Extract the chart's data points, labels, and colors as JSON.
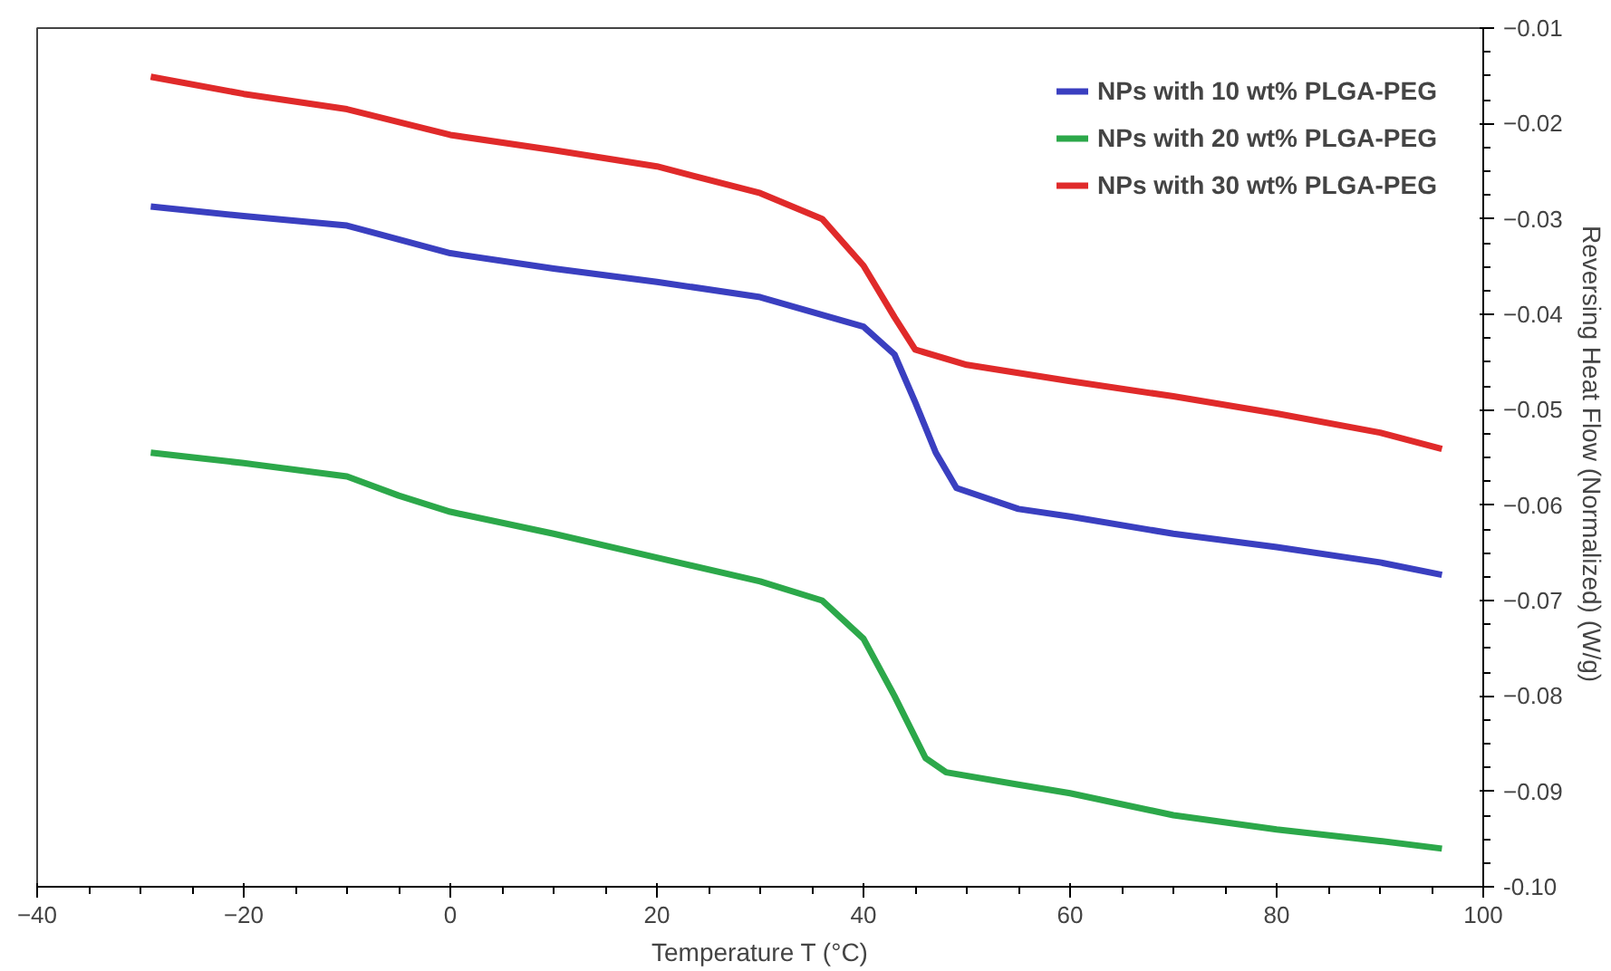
{
  "chart_data": {
    "type": "line",
    "xlabel": "Temperature T (°C)",
    "ylabel": "Reversing Heat Flow (Normalized)  (W/g)",
    "xlim": [
      -40,
      100
    ],
    "xticks": [
      -40,
      -20,
      0,
      20,
      40,
      60,
      80,
      100
    ],
    "ylim": [
      -0.1,
      -0.01
    ],
    "yticks": [
      {
        "value": -0.1,
        "label": "-0.10"
      },
      -0.09,
      -0.08,
      -0.07,
      -0.06,
      -0.05,
      -0.04,
      -0.03,
      -0.02,
      -0.01
    ],
    "grid": false,
    "legend": "top right",
    "marker": "none",
    "line_style": "solid",
    "series": [
      {
        "name": "NPs with 10 wt% PLGA-PEG",
        "color": "#3a3fc0",
        "x": [
          -29,
          -20,
          -10,
          0,
          10,
          20,
          30,
          40,
          43,
          45,
          47,
          49,
          55,
          60,
          70,
          80,
          90,
          96
        ],
        "values": [
          -0.0287,
          -0.0297,
          -0.0307,
          -0.0336,
          -0.0352,
          -0.0366,
          -0.0382,
          -0.0413,
          -0.0442,
          -0.0492,
          -0.0545,
          -0.0582,
          -0.0604,
          -0.0612,
          -0.063,
          -0.0644,
          -0.066,
          -0.0673
        ]
      },
      {
        "name": "NPs with 20 wt% PLGA-PEG",
        "color": "#2ca84a",
        "x": [
          -29,
          -20,
          -10,
          -5,
          0,
          10,
          20,
          30,
          36,
          40,
          43,
          46,
          48,
          55,
          60,
          70,
          80,
          90,
          96
        ],
        "values": [
          -0.0545,
          -0.0556,
          -0.057,
          -0.059,
          -0.0607,
          -0.063,
          -0.0655,
          -0.068,
          -0.07,
          -0.074,
          -0.08,
          -0.0865,
          -0.088,
          -0.0893,
          -0.0902,
          -0.0925,
          -0.094,
          -0.0952,
          -0.096
        ]
      },
      {
        "name": "NPs with 30 wt% PLGA-PEG",
        "color": "#e02a2a",
        "x": [
          -29,
          -20,
          -10,
          0,
          10,
          20,
          30,
          36,
          40,
          43,
          45,
          50,
          60,
          70,
          80,
          90,
          96
        ],
        "values": [
          -0.0151,
          -0.0169,
          -0.0185,
          -0.0212,
          -0.0228,
          -0.0245,
          -0.0273,
          -0.03,
          -0.0349,
          -0.0403,
          -0.0437,
          -0.0453,
          -0.047,
          -0.0486,
          -0.0504,
          -0.0524,
          -0.0541
        ]
      }
    ]
  }
}
